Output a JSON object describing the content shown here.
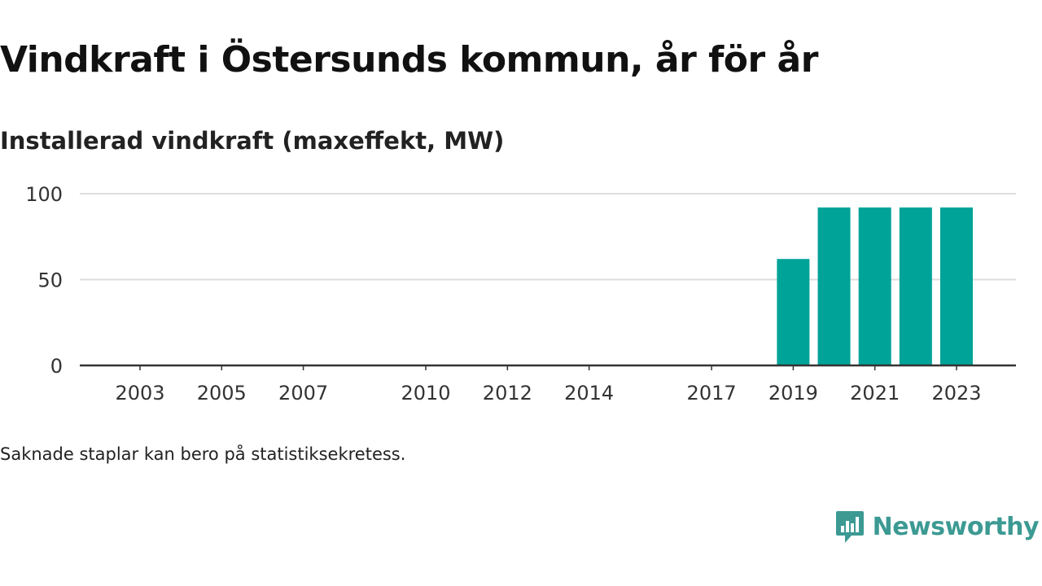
{
  "header": {
    "title": "Vindkraft i Östersunds kommun, år för år",
    "subtitle": "Installerad vindkraft (maxeffekt, MW)"
  },
  "footer": {
    "note": "Saknade staplar kan bero på statistiksekretess.",
    "brand": "Newsworthy"
  },
  "colors": {
    "bar": "#00a398",
    "brand": "#3c9a93",
    "grid": "#dddddd",
    "axis": "#333333",
    "text": "#333333"
  },
  "icons": {
    "brand_logo": "speech-bubble-bar-chart-icon"
  },
  "chart_data": {
    "type": "bar",
    "x": [
      2003,
      2004,
      2005,
      2006,
      2007,
      2008,
      2009,
      2010,
      2011,
      2012,
      2013,
      2014,
      2015,
      2016,
      2017,
      2018,
      2019,
      2020,
      2021,
      2022,
      2023
    ],
    "values": [
      0,
      0,
      0,
      0,
      0,
      0,
      0,
      0,
      0,
      0,
      0,
      0,
      0,
      0,
      0,
      0,
      62,
      92,
      92,
      92,
      92
    ],
    "x_tick_labels": [
      "2003",
      "2005",
      "2007",
      "2010",
      "2012",
      "2014",
      "2017",
      "2019",
      "2021",
      "2023"
    ],
    "y_ticks": [
      0,
      50,
      100
    ],
    "ylim": [
      0,
      100
    ],
    "title": "",
    "xlabel": "",
    "ylabel": "",
    "grid": true,
    "legend": "none"
  }
}
